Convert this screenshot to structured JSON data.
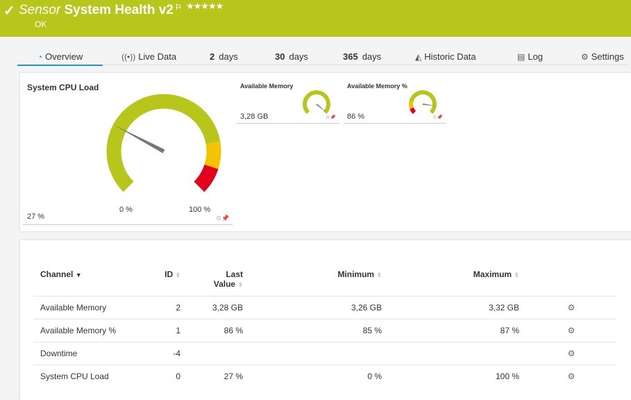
{
  "header": {
    "prefix": "Sensor",
    "title": "System Health v2",
    "status": "OK",
    "stars": "★★★★★",
    "check_icon": "check-icon",
    "flag_icon": "flag-icon",
    "color": "#b8c51a"
  },
  "tabs": [
    {
      "label": "Overview",
      "icon": "gauge-icon"
    },
    {
      "label": "Live Data",
      "icon": "broadcast-icon"
    },
    {
      "num": "2",
      "label": "days"
    },
    {
      "num": "30",
      "label": "days"
    },
    {
      "num": "365",
      "label": "days"
    },
    {
      "label": "Historic Data",
      "icon": "chart-icon"
    },
    {
      "label": "Log",
      "icon": "list-icon"
    },
    {
      "label": "Settings",
      "icon": "gear-icon"
    }
  ],
  "gauges": {
    "cpu": {
      "title": "System CPU Load",
      "value": "27 %",
      "min": "0 %",
      "max": "100 %",
      "level": 0.27
    },
    "mem": {
      "title": "Available Memory",
      "value": "3,28 GB",
      "level": 0.98
    },
    "memp": {
      "title": "Available Memory %",
      "value": "86 %",
      "level": 0.86
    }
  },
  "table": {
    "headers": {
      "channel": "Channel",
      "id": "ID",
      "last1": "Last",
      "last2": "Value",
      "min": "Minimum",
      "max": "Maximum"
    },
    "rows": [
      {
        "channel": "Available Memory",
        "id": "2",
        "last": "3,28 GB",
        "min": "3,26 GB",
        "max": "3,32 GB"
      },
      {
        "channel": "Available Memory %",
        "id": "1",
        "last": "86 %",
        "min": "85 %",
        "max": "87 %"
      },
      {
        "channel": "Downtime",
        "id": "-4",
        "last": "",
        "min": "",
        "max": ""
      },
      {
        "channel": "System CPU Load",
        "id": "0",
        "last": "27 %",
        "min": "0 %",
        "max": "100 %"
      }
    ]
  },
  "colors": {
    "green": "#b8c51a",
    "yellow": "#f5c400",
    "red": "#e2001a",
    "accent": "#1e9bd7"
  }
}
